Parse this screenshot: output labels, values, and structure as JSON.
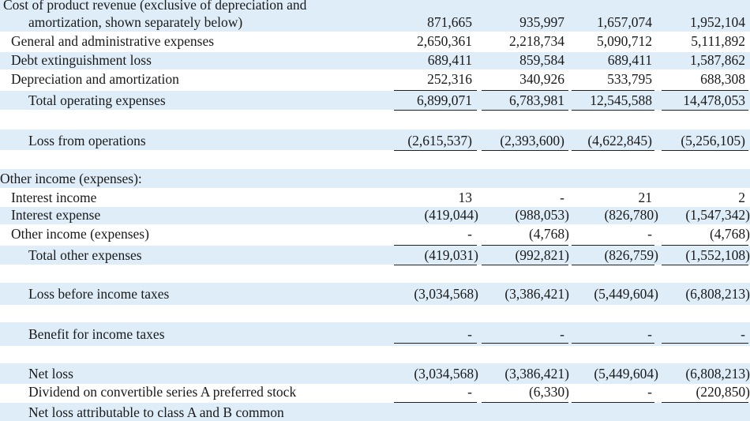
{
  "rows": {
    "cost_of_revenue": {
      "label1": "Cost of product revenue (exclusive of depreciation and",
      "label2": "amortization, shown separately below)",
      "v": [
        "871,665",
        "935,997",
        "1,657,074",
        "1,952,104"
      ]
    },
    "gen_admin": {
      "label": "General and administrative expenses",
      "v": [
        "2,650,361",
        "2,218,734",
        "5,090,712",
        "5,111,892"
      ]
    },
    "debt_ext": {
      "label": "Debt extinguishment loss",
      "v": [
        "689,411",
        "859,584",
        "689,411",
        "1,587,862"
      ]
    },
    "dep_amort": {
      "label": "Depreciation and amortization",
      "v": [
        "252,316",
        "340,926",
        "533,795",
        "688,308"
      ]
    },
    "total_opex": {
      "label": "Total operating expenses",
      "v": [
        "6,899,071",
        "6,783,981",
        "12,545,588",
        "14,478,053"
      ]
    },
    "loss_ops": {
      "label": "Loss from operations",
      "v": [
        "(2,615,537)",
        "(2,393,600)",
        "(4,622,845)",
        "(5,256,105)"
      ]
    },
    "other_header": {
      "label": "Other income (expenses):"
    },
    "interest_income": {
      "label": "Interest income",
      "v": [
        "13",
        "-",
        "21",
        "2"
      ]
    },
    "interest_expense": {
      "label": "Interest expense",
      "v": [
        "(419,044)",
        "(988,053)",
        "(826,780)",
        "(1,547,342)"
      ]
    },
    "other_income": {
      "label": "Other income (expenses)",
      "v": [
        "-",
        "(4,768)",
        "-",
        "(4,768)"
      ]
    },
    "total_other": {
      "label": "Total other expenses",
      "v": [
        "(419,031)",
        "(992,821)",
        "(826,759)",
        "(1,552,108)"
      ]
    },
    "loss_before_tax": {
      "label": "Loss before income taxes",
      "v": [
        "(3,034,568)",
        "(3,386,421)",
        "(5,449,604)",
        "(6,808,213)"
      ]
    },
    "benefit_tax": {
      "label": "Benefit for income taxes",
      "v": [
        "-",
        "-",
        "-",
        "-"
      ]
    },
    "net_loss": {
      "label": "Net loss",
      "v": [
        "(3,034,568)",
        "(3,386,421)",
        "(5,449,604)",
        "(6,808,213)"
      ]
    },
    "dividend": {
      "label": "Dividend on convertible series A preferred stock",
      "v": [
        "-",
        "(6,330)",
        "-",
        "(220,850)"
      ]
    },
    "net_loss_attr": {
      "label": "Net loss attributable to class A and B common"
    }
  },
  "colors": {
    "highlight": "#deedf8",
    "text": "#1a1a1a"
  }
}
